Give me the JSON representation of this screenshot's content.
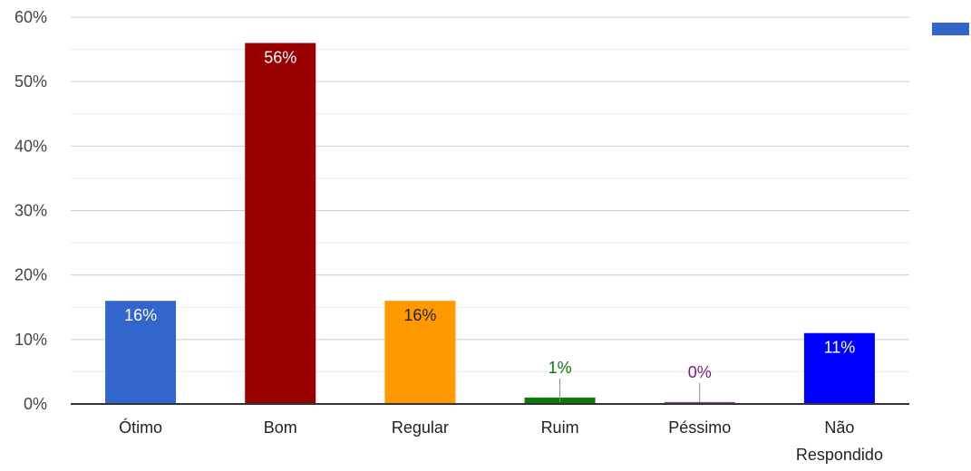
{
  "chart_data": {
    "type": "bar",
    "categories": [
      "Ótimo",
      "Bom",
      "Regular",
      "Ruim",
      "Péssimo",
      "Não Respondido"
    ],
    "category_lines": [
      [
        "Ótimo"
      ],
      [
        "Bom"
      ],
      [
        "Regular"
      ],
      [
        "Ruim"
      ],
      [
        "Péssimo"
      ],
      [
        "Não",
        "Respondido"
      ]
    ],
    "values": [
      16,
      56,
      16,
      1,
      0.3,
      11
    ],
    "data_labels": [
      "16%",
      "56%",
      "16%",
      "1%",
      "0%",
      "11%"
    ],
    "colors": [
      "#3366cc",
      "#990000",
      "#ff9900",
      "#0c7a0c",
      "#8e3a9a",
      "#0000ff"
    ],
    "label_colors": [
      "#ffffff",
      "#ffffff",
      "#222222",
      "#0c7a0c",
      "#7a1a7a",
      "#ffffff"
    ],
    "ylim": [
      0,
      60
    ],
    "yticks": [
      0,
      10,
      20,
      30,
      40,
      50,
      60
    ],
    "ytick_labels": [
      "0%",
      "10%",
      "20%",
      "30%",
      "40%",
      "50%",
      "60%"
    ],
    "minor_gridlines": true,
    "legend_color": "#3366cc"
  }
}
